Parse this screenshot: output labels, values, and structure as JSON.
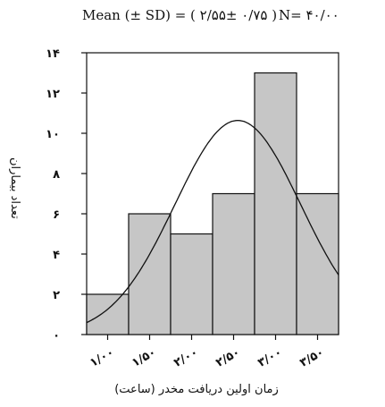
{
  "header": {
    "mean_text": "Mean (± SD) = ( ۲/۵۵± ۰/۷۵ )",
    "n_text": "N= ۴۰/۰۰"
  },
  "chart_data": {
    "type": "bar",
    "title": "",
    "xlabel": "زمان اولین دریافت مخدر (ساعت)",
    "ylabel": "تعداد بیماران",
    "bin_edges": [
      0.75,
      1.25,
      1.75,
      2.25,
      2.75,
      3.25,
      3.75
    ],
    "values": [
      2,
      6,
      5,
      7,
      13,
      7
    ],
    "ylim": [
      0,
      14
    ],
    "yticks": [
      0,
      2,
      4,
      6,
      8,
      10,
      12,
      14
    ],
    "ytick_labels": [
      "۰",
      "۲",
      "۴",
      "۶",
      "۸",
      "۱۰",
      "۱۲",
      "۱۴"
    ],
    "xticks": [
      1.0,
      1.5,
      2.0,
      2.5,
      3.0,
      3.5
    ],
    "xtick_labels": [
      "۱/۰۰",
      "۱/۵۰",
      "۲/۰۰",
      "۲/۵۰",
      "۳/۰۰",
      "۳/۵۰"
    ],
    "normal_curve": {
      "mean": 2.55,
      "sd": 0.75,
      "n": 40,
      "bin_width": 0.5
    },
    "bar_color": "#c6c6c6",
    "grid": false
  }
}
